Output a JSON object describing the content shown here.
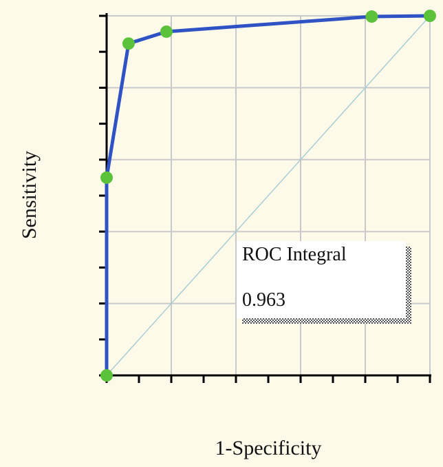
{
  "chart_data": {
    "type": "line",
    "xlabel": "1-Specificity",
    "ylabel": "Sensitivity",
    "xlim": [
      0,
      1
    ],
    "ylim": [
      0,
      1
    ],
    "xticks": [
      0,
      0.1,
      0.2,
      0.3,
      0.4,
      0.5,
      0.6,
      0.7,
      0.8,
      0.9,
      1
    ],
    "yticks": [
      0,
      0.1,
      0.2,
      0.3,
      0.4,
      0.5,
      0.6,
      0.7,
      0.8,
      0.9,
      1
    ],
    "xgrid": [
      0.2,
      0.4,
      0.6,
      0.8,
      1
    ],
    "ygrid": [
      0.2,
      0.4,
      0.6,
      0.8,
      1
    ],
    "series": [
      {
        "color": "#2f52c4",
        "marker_color": "#5cc23a",
        "x": [
          0,
          0,
          0.068,
          0.185,
          0.82,
          1
        ],
        "values": [
          0,
          0.55,
          0.923,
          0.956,
          0.998,
          1
        ]
      }
    ],
    "reference_line": {
      "color": "#a8cdd4",
      "x": [
        0,
        1
      ],
      "values": [
        0,
        1
      ]
    },
    "annotation": {
      "label": "ROC Integral",
      "value": 0.963
    }
  }
}
